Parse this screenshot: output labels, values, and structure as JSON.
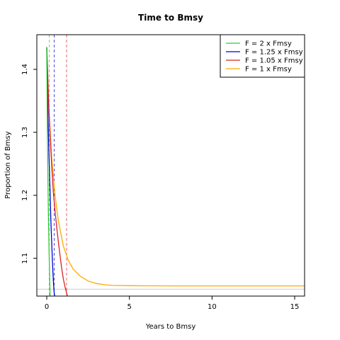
{
  "chart_data": {
    "type": "line",
    "title": "Time to Bmsy",
    "xlabel": "Years to Bmsy",
    "ylabel": "Proportion of Bmsy",
    "xlim": [
      -0.6,
      15.6
    ],
    "ylim": [
      1.04,
      1.455
    ],
    "xticks": [
      0,
      5,
      10,
      15
    ],
    "yticks": [
      1.1,
      1.2,
      1.3,
      1.4
    ],
    "grid": false,
    "legend_position": "top-right",
    "series": [
      {
        "name": "F = 2 x Fmsy",
        "color": "#33cc33",
        "x": [
          0.0,
          0.03,
          0.06,
          0.1,
          0.15,
          0.2
        ],
        "y": [
          1.435,
          1.33,
          1.25,
          1.17,
          1.1,
          1.04
        ],
        "vline_x": 0.15
      },
      {
        "name": "F = 1.25 x Fmsy",
        "color": "#0000dd",
        "x": [
          0.0,
          0.05,
          0.1,
          0.15,
          0.2,
          0.25,
          0.3,
          0.35,
          0.4,
          0.45,
          0.48
        ],
        "y": [
          1.435,
          1.355,
          1.3,
          1.25,
          1.205,
          1.16,
          1.125,
          1.09,
          1.065,
          1.045,
          1.04
        ],
        "vline_x": 0.45
      },
      {
        "name": "F = 1.05 x Fmsy",
        "color": "#dd2222",
        "x": [
          0.0,
          0.1,
          0.2,
          0.3,
          0.4,
          0.5,
          0.6,
          0.7,
          0.8,
          0.9,
          1.0,
          1.1,
          1.25
        ],
        "y": [
          1.435,
          1.355,
          1.295,
          1.245,
          1.205,
          1.175,
          1.15,
          1.127,
          1.105,
          1.085,
          1.068,
          1.055,
          1.04
        ],
        "vline_x": 1.2
      },
      {
        "name": "F = 1 x Fmsy",
        "color": "#ffaa00",
        "x": [
          0.0,
          0.15,
          0.3,
          0.5,
          0.7,
          1.0,
          1.3,
          1.6,
          2.0,
          2.5,
          3.0,
          3.5,
          4.0,
          5.0,
          6.0,
          8.0,
          10.0,
          12.0,
          14.0,
          15.6
        ],
        "y": [
          1.435,
          1.33,
          1.26,
          1.2,
          1.16,
          1.12,
          1.097,
          1.083,
          1.072,
          1.064,
          1.06,
          1.058,
          1.057,
          1.0565,
          1.0563,
          1.0562,
          1.0562,
          1.0562,
          1.0562,
          1.0562
        ],
        "vline_x": null
      }
    ],
    "hline_y": 1.051
  }
}
